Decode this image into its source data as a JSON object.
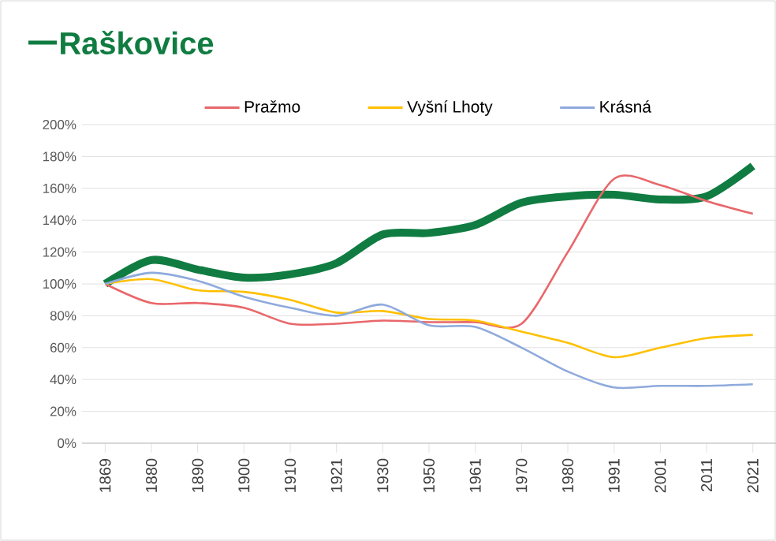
{
  "chart_data": {
    "type": "line",
    "categories": [
      "1869",
      "1880",
      "1890",
      "1900",
      "1910",
      "1921",
      "1930",
      "1950",
      "1961",
      "1970",
      "1980",
      "1991",
      "2001",
      "2011",
      "2021"
    ],
    "series": [
      {
        "name": "Raškovice",
        "color": "#107c41",
        "values": [
          100,
          115,
          109,
          104,
          106,
          113,
          131,
          132,
          137,
          151,
          155,
          156,
          153,
          155,
          174
        ]
      },
      {
        "name": "Pražmo",
        "color": "#e8676a",
        "values": [
          100,
          88,
          88,
          85,
          75,
          75,
          77,
          76,
          76,
          75,
          120,
          166,
          162,
          152,
          144
        ]
      },
      {
        "name": "Vyšní Lhoty",
        "color": "#ffc000",
        "values": [
          100,
          103,
          96,
          95,
          90,
          82,
          83,
          78,
          77,
          70,
          63,
          54,
          60,
          66,
          68
        ]
      },
      {
        "name": "Krásná",
        "color": "#8faadc",
        "values": [
          100,
          107,
          102,
          92,
          85,
          80,
          87,
          74,
          73,
          60,
          45,
          35,
          36,
          36,
          37
        ]
      }
    ],
    "ylim": [
      0,
      200
    ],
    "yticks": [
      {
        "value": 0,
        "label": "0%"
      },
      {
        "value": 20,
        "label": "20%"
      },
      {
        "value": 40,
        "label": "40%"
      },
      {
        "value": 60,
        "label": "60%"
      },
      {
        "value": 80,
        "label": "80%"
      },
      {
        "value": 100,
        "label": "100%"
      },
      {
        "value": 120,
        "label": "120%"
      },
      {
        "value": 140,
        "label": "140%"
      },
      {
        "value": 160,
        "label": "160%"
      },
      {
        "value": 180,
        "label": "180%"
      },
      {
        "value": 200,
        "label": "200%"
      }
    ],
    "grid": "y",
    "legend": "top",
    "marker": "none",
    "line_style": "solid"
  }
}
